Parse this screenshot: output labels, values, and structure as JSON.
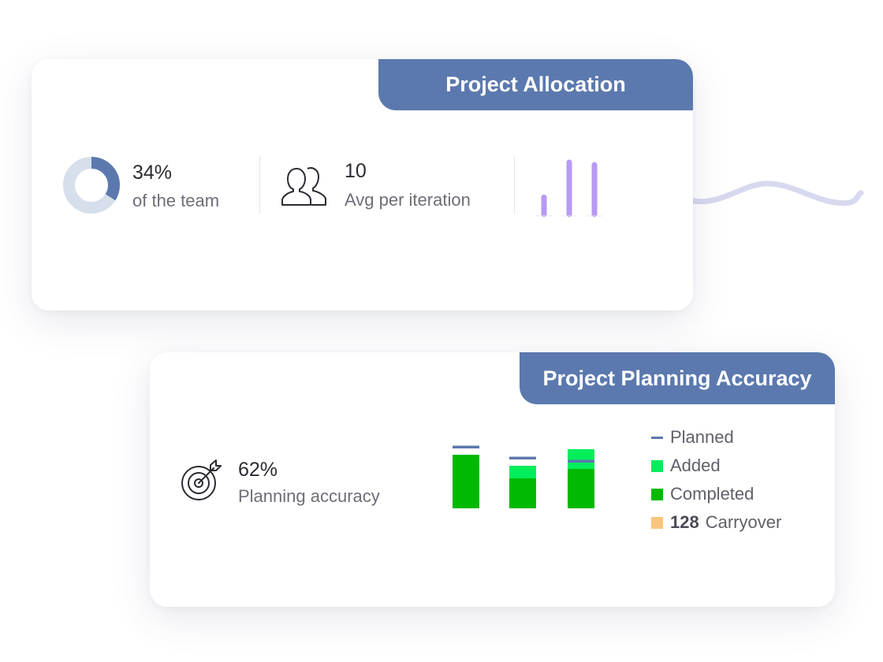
{
  "allocation_card": {
    "title": "Project Allocation",
    "team_share": {
      "value": "34%",
      "label": "of the team",
      "fraction": 0.34
    },
    "avg_per_iteration": {
      "value": "10",
      "label": "Avg per iteration"
    },
    "mini_bars": [
      0.33,
      1.0,
      0.95
    ]
  },
  "planning_card": {
    "title": "Project Planning Accuracy",
    "accuracy": {
      "value": "62%",
      "label": "Planning accuracy"
    },
    "legend": {
      "planned": "Planned",
      "added": "Added",
      "completed": "Completed",
      "carryover_count": "128",
      "carryover": "Carryover"
    }
  },
  "chart_data": {
    "type": "bar",
    "stacked": true,
    "categories": [
      "",
      "",
      ""
    ],
    "series": [
      {
        "name": "Completed",
        "values": [
          68,
          38,
          50
        ]
      },
      {
        "name": "Added",
        "values": [
          0,
          16,
          25
        ]
      }
    ],
    "planned": [
      78,
      64,
      60
    ],
    "ylim": [
      0,
      80
    ],
    "colors": {
      "Completed": "#00b900",
      "Added": "#00ee5c",
      "Planned": "#5b79ae",
      "Carryover": "#fbc57f"
    }
  },
  "colors": {
    "tab": "#5b79ae",
    "donut_fill": "#5b79ae",
    "donut_track": "#d6dfeb",
    "mini_bar": "#b59bf4",
    "wave": "#d7d9ef"
  }
}
